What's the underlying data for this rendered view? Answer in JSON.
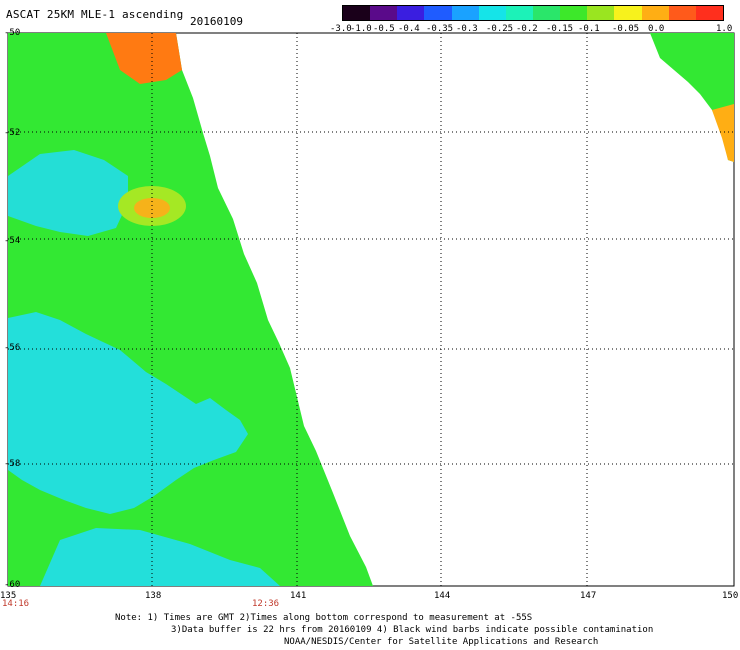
{
  "header": {
    "title": "ASCAT 25KM MLE-1 ascending",
    "date": "20160109"
  },
  "colorbar": {
    "labels": [
      "-3.0",
      "-1.0",
      "-0.5",
      "-0.4",
      "-0.35",
      "-0.3",
      "-0.25",
      "-0.2",
      "-0.15",
      "-0.1",
      "-0.05",
      "0.0",
      "1.0"
    ],
    "colors": [
      "#1a001a",
      "#5a0a8a",
      "#3a1ee0",
      "#1f5cff",
      "#1aa2ff",
      "#15e4e8",
      "#1cf2b8",
      "#2ae66a",
      "#3de82a",
      "#9ae520",
      "#f7f21c",
      "#ffae14",
      "#ff5a1b",
      "#ff2f1d"
    ]
  },
  "axes": {
    "x_ticks": [
      "135",
      "138",
      "141",
      "144",
      "147",
      "150"
    ],
    "y_ticks": [
      "-50",
      "-52",
      "-54",
      "-56",
      "-58",
      "-60"
    ]
  },
  "times": {
    "left": "14:16",
    "right": "12:36"
  },
  "notes": {
    "line1": "Note: 1) Times are GMT 2)Times along bottom correspond to measurement at -55S",
    "line2": "3)Data buffer is 22 hrs from 20160109 4) Black wind barbs indicate possible contamination",
    "line3": "NOAA/NESDIS/Center for Satellite Applications and Research"
  },
  "map": {
    "lon_range": [
      135,
      150
    ],
    "lat_range": [
      -60,
      -50
    ],
    "swath_color": "#33e833",
    "ice_color": "#22dde8",
    "warm_color": "#ff7a12",
    "gridline_color": "#000000"
  }
}
